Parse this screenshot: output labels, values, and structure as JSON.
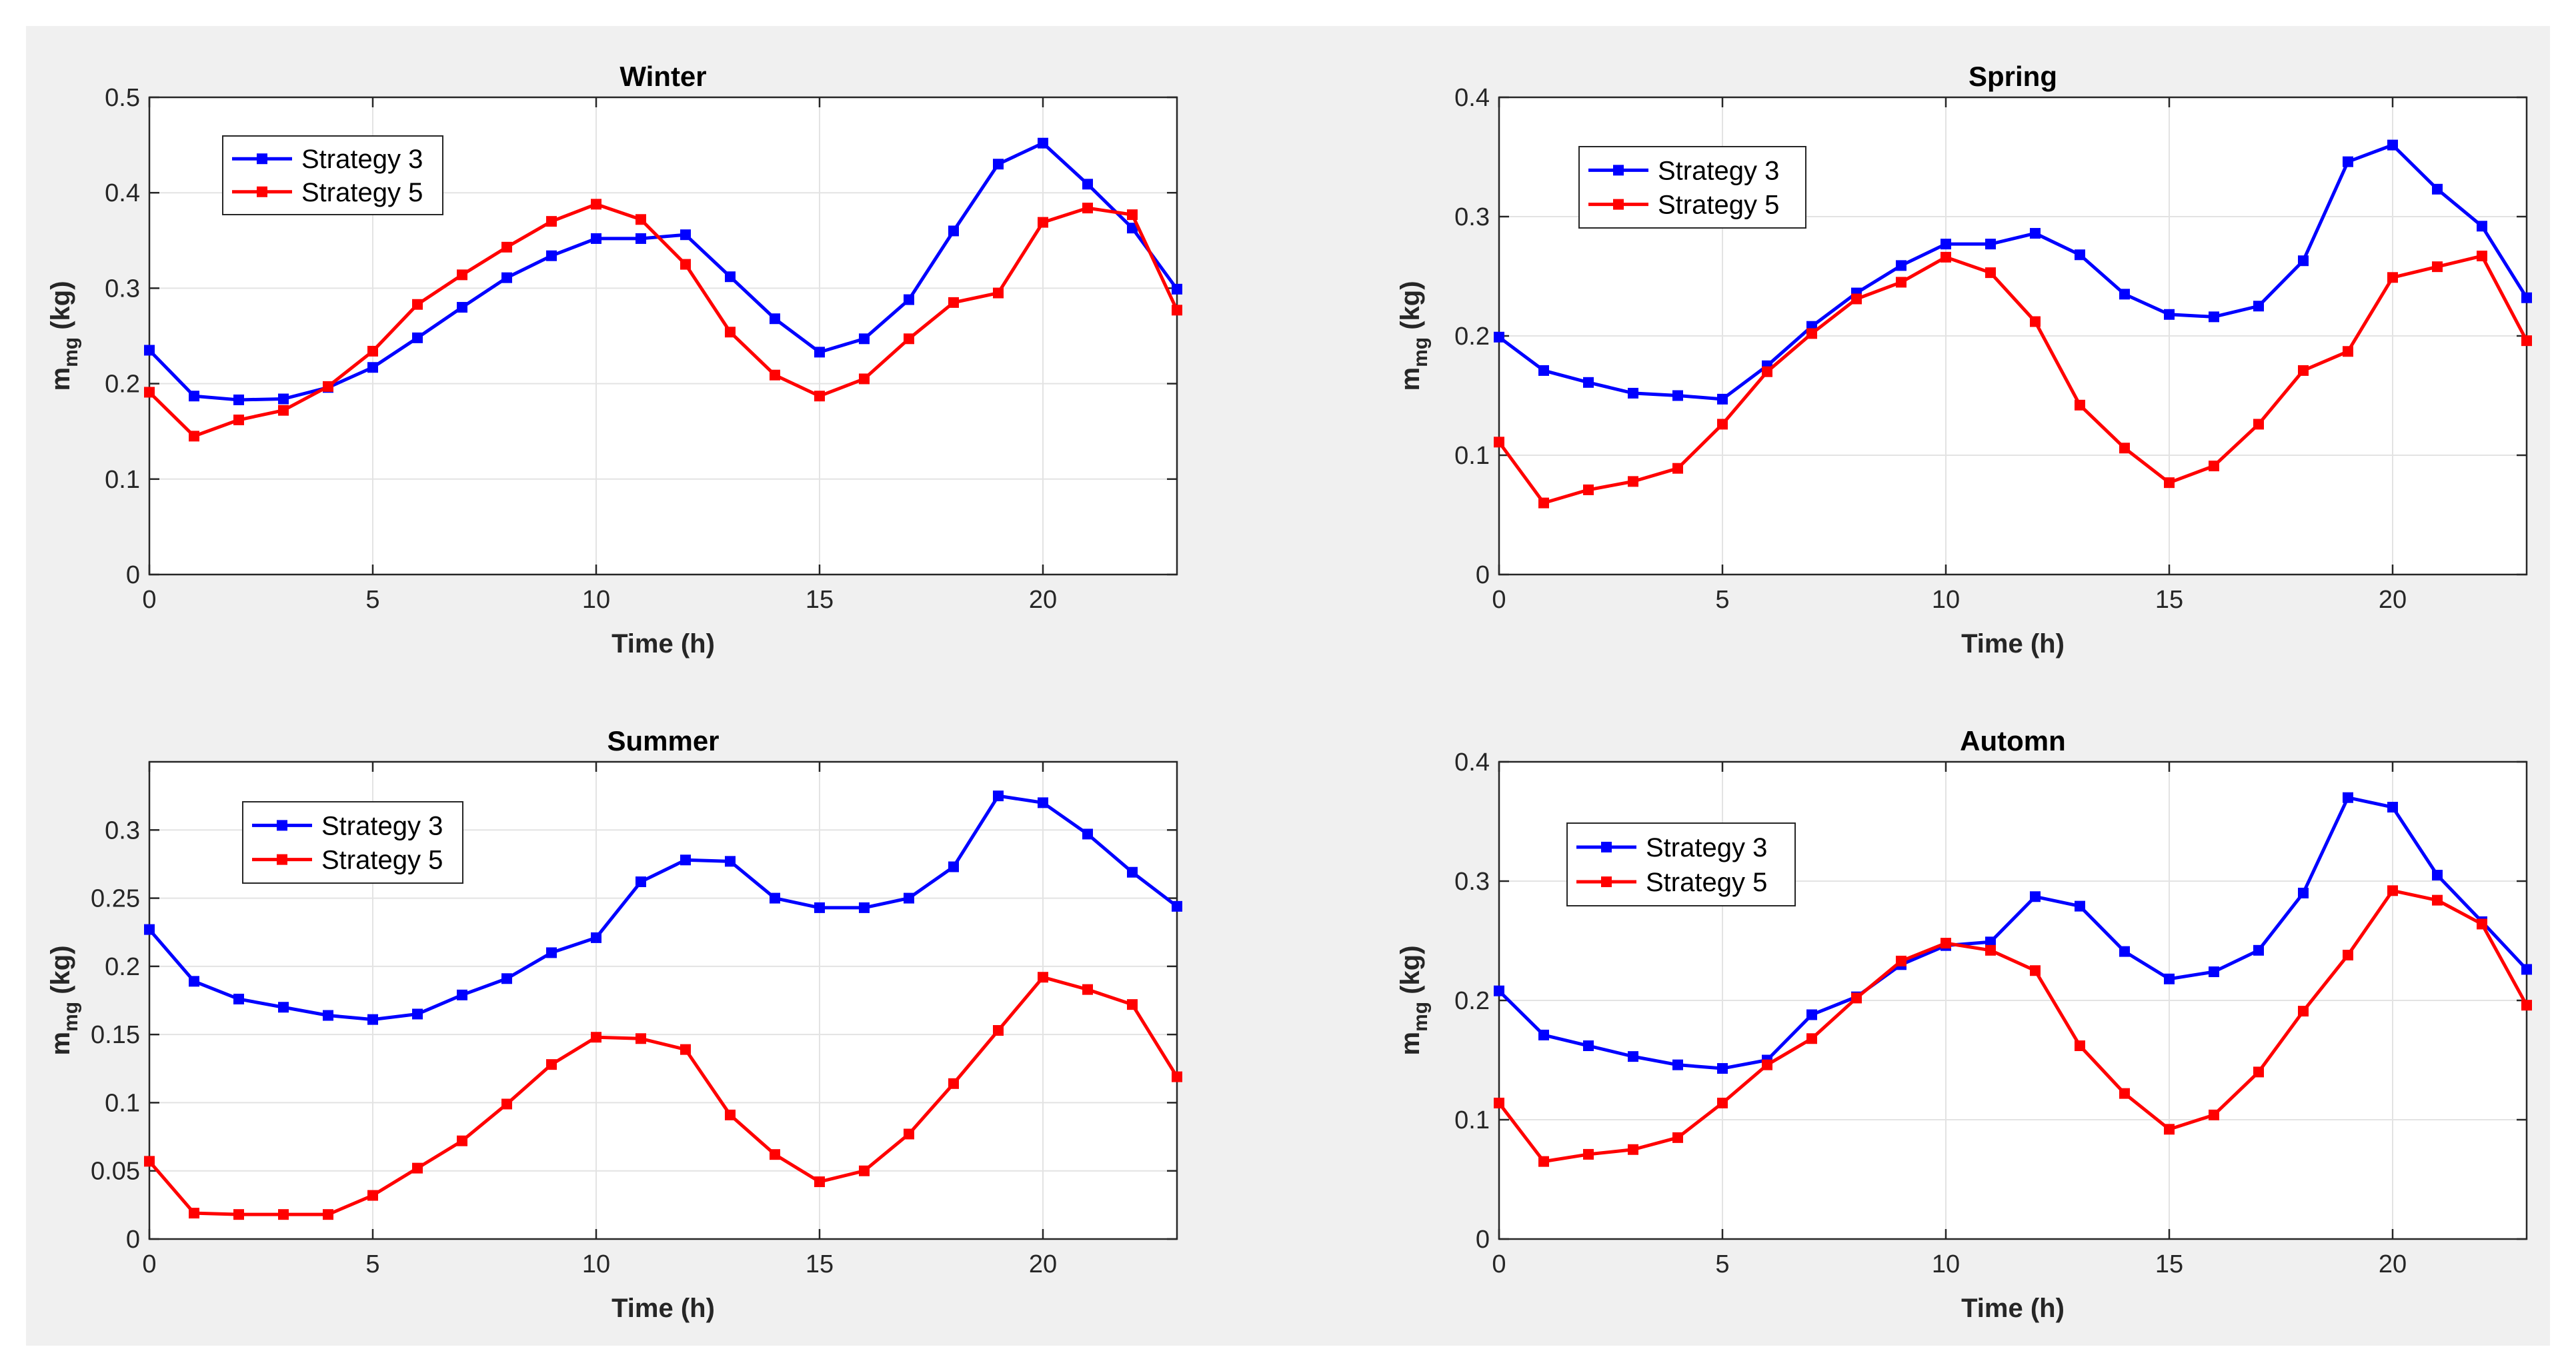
{
  "chart_data": [
    {
      "type": "line",
      "title": "Winter",
      "xlabel": "Time (h)",
      "ylabel": {
        "main": "m",
        "sub": "mg",
        "unit": " (kg)"
      },
      "xlim": [
        0,
        23
      ],
      "ylim": [
        0,
        0.5
      ],
      "xticks": [
        0,
        5,
        10,
        15,
        20
      ],
      "yticks": [
        0,
        0.1,
        0.2,
        0.3,
        0.4,
        0.5
      ],
      "ytick_labels": [
        "0",
        "0.1",
        "0.2",
        "0.3",
        "0.4",
        "0.5"
      ],
      "grid": true,
      "legend_position": "top-left",
      "x": [
        0,
        1,
        2,
        3,
        4,
        5,
        6,
        7,
        8,
        9,
        10,
        11,
        12,
        13,
        14,
        15,
        16,
        17,
        18,
        19,
        20,
        21,
        22,
        23
      ],
      "series": [
        {
          "name": "Strategy 3",
          "color": "#0000ff",
          "values": [
            0.235,
            0.187,
            0.183,
            0.184,
            0.196,
            0.217,
            0.248,
            0.28,
            0.311,
            0.334,
            0.352,
            0.352,
            0.356,
            0.312,
            0.268,
            0.233,
            0.247,
            0.288,
            0.36,
            0.43,
            0.452,
            0.409,
            0.363,
            0.299
          ]
        },
        {
          "name": "Strategy 5",
          "color": "#ff0000",
          "values": [
            0.191,
            0.145,
            0.162,
            0.172,
            0.197,
            0.234,
            0.283,
            0.314,
            0.343,
            0.37,
            0.388,
            0.372,
            0.325,
            0.254,
            0.209,
            0.187,
            0.205,
            0.247,
            0.285,
            0.295,
            0.369,
            0.384,
            0.377,
            0.277
          ]
        }
      ]
    },
    {
      "type": "line",
      "title": "Spring",
      "xlabel": "Time (h)",
      "ylabel": {
        "main": "m",
        "sub": "mg",
        "unit": " (kg)"
      },
      "xlim": [
        0,
        23
      ],
      "ylim": [
        0,
        0.4
      ],
      "xticks": [
        0,
        5,
        10,
        15,
        20
      ],
      "yticks": [
        0,
        0.1,
        0.2,
        0.3,
        0.4
      ],
      "ytick_labels": [
        "0",
        "0.1",
        "0.2",
        "0.3",
        "0.4"
      ],
      "grid": true,
      "legend_position": "top-left",
      "x": [
        0,
        1,
        2,
        3,
        4,
        5,
        6,
        7,
        8,
        9,
        10,
        11,
        12,
        13,
        14,
        15,
        16,
        17,
        18,
        19,
        20,
        21,
        22,
        23
      ],
      "series": [
        {
          "name": "Strategy 3",
          "color": "#0000ff",
          "values": [
            0.199,
            0.171,
            0.161,
            0.152,
            0.15,
            0.147,
            0.175,
            0.208,
            0.236,
            0.259,
            0.277,
            0.277,
            0.286,
            0.268,
            0.235,
            0.218,
            0.216,
            0.225,
            0.263,
            0.346,
            0.36,
            0.323,
            0.292,
            0.232
          ]
        },
        {
          "name": "Strategy 5",
          "color": "#ff0000",
          "values": [
            0.111,
            0.06,
            0.071,
            0.078,
            0.089,
            0.126,
            0.17,
            0.202,
            0.231,
            0.245,
            0.266,
            0.253,
            0.212,
            0.142,
            0.106,
            0.077,
            0.091,
            0.126,
            0.171,
            0.187,
            0.249,
            0.258,
            0.267,
            0.196
          ]
        }
      ]
    },
    {
      "type": "line",
      "title": "Summer",
      "xlabel": "Time (h)",
      "ylabel": {
        "main": "m",
        "sub": "mg",
        "unit": " (kg)"
      },
      "xlim": [
        0,
        23
      ],
      "ylim": [
        0,
        0.35
      ],
      "xticks": [
        0,
        5,
        10,
        15,
        20
      ],
      "yticks": [
        0,
        0.05,
        0.1,
        0.15,
        0.2,
        0.25,
        0.3
      ],
      "ytick_labels": [
        "0",
        "0.05",
        "0.1",
        "0.15",
        "0.2",
        "0.25",
        "0.3"
      ],
      "grid": true,
      "legend_position": "top-left",
      "x": [
        0,
        1,
        2,
        3,
        4,
        5,
        6,
        7,
        8,
        9,
        10,
        11,
        12,
        13,
        14,
        15,
        16,
        17,
        18,
        19,
        20,
        21,
        22,
        23
      ],
      "series": [
        {
          "name": "Strategy 3",
          "color": "#0000ff",
          "values": [
            0.227,
            0.189,
            0.176,
            0.17,
            0.164,
            0.161,
            0.165,
            0.179,
            0.191,
            0.21,
            0.221,
            0.262,
            0.278,
            0.277,
            0.25,
            0.243,
            0.243,
            0.25,
            0.273,
            0.325,
            0.32,
            0.297,
            0.269,
            0.244
          ]
        },
        {
          "name": "Strategy 5",
          "color": "#ff0000",
          "values": [
            0.057,
            0.019,
            0.018,
            0.018,
            0.018,
            0.032,
            0.052,
            0.072,
            0.099,
            0.128,
            0.148,
            0.147,
            0.139,
            0.091,
            0.062,
            0.042,
            0.05,
            0.077,
            0.114,
            0.153,
            0.192,
            0.183,
            0.172,
            0.119
          ]
        }
      ]
    },
    {
      "type": "line",
      "title": "Automn",
      "xlabel": "Time (h)",
      "ylabel": {
        "main": "m",
        "sub": "mg",
        "unit": " (kg)"
      },
      "xlim": [
        0,
        23
      ],
      "ylim": [
        0,
        0.4
      ],
      "xticks": [
        0,
        5,
        10,
        15,
        20
      ],
      "yticks": [
        0,
        0.1,
        0.2,
        0.3,
        0.4
      ],
      "ytick_labels": [
        "0",
        "0.1",
        "0.2",
        "0.3",
        "0.4"
      ],
      "grid": true,
      "legend_position": "top-left",
      "x": [
        0,
        1,
        2,
        3,
        4,
        5,
        6,
        7,
        8,
        9,
        10,
        11,
        12,
        13,
        14,
        15,
        16,
        17,
        18,
        19,
        20,
        21,
        22,
        23
      ],
      "series": [
        {
          "name": "Strategy 3",
          "color": "#0000ff",
          "values": [
            0.208,
            0.171,
            0.162,
            0.153,
            0.146,
            0.143,
            0.15,
            0.188,
            0.203,
            0.23,
            0.246,
            0.249,
            0.287,
            0.279,
            0.241,
            0.218,
            0.224,
            0.242,
            0.29,
            0.37,
            0.362,
            0.305,
            0.266,
            0.226
          ]
        },
        {
          "name": "Strategy 5",
          "color": "#ff0000",
          "values": [
            0.114,
            0.065,
            0.071,
            0.075,
            0.085,
            0.114,
            0.146,
            0.168,
            0.202,
            0.233,
            0.248,
            0.242,
            0.225,
            0.162,
            0.122,
            0.092,
            0.104,
            0.14,
            0.191,
            0.238,
            0.292,
            0.284,
            0.264,
            0.196
          ]
        }
      ]
    }
  ]
}
